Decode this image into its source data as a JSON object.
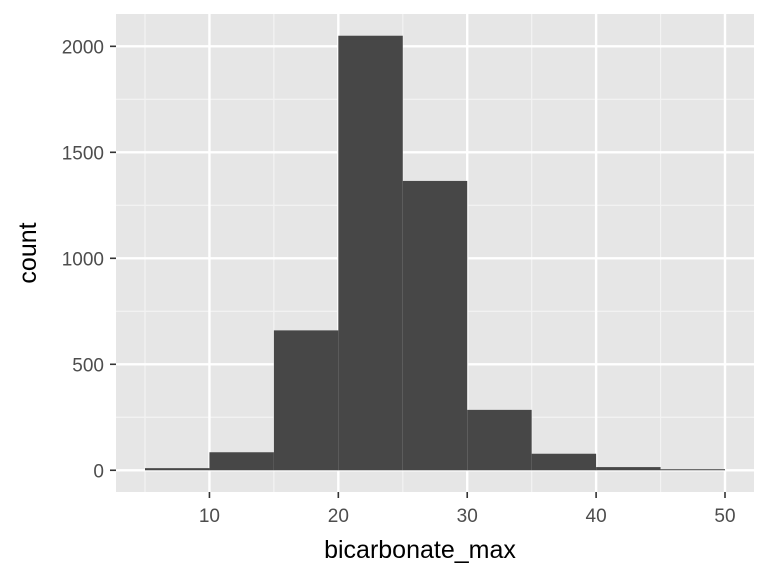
{
  "chart_data": {
    "type": "bar",
    "subtype": "histogram",
    "xlabel": "bicarbonate_max",
    "ylabel": "count",
    "bin_width": 5,
    "bins": [
      {
        "x0": 5,
        "x1": 10,
        "count": 10
      },
      {
        "x0": 10,
        "x1": 15,
        "count": 85
      },
      {
        "x0": 15,
        "x1": 20,
        "count": 660
      },
      {
        "x0": 20,
        "x1": 25,
        "count": 2050
      },
      {
        "x0": 25,
        "x1": 30,
        "count": 1365
      },
      {
        "x0": 30,
        "x1": 35,
        "count": 285
      },
      {
        "x0": 35,
        "x1": 40,
        "count": 78
      },
      {
        "x0": 40,
        "x1": 45,
        "count": 15
      },
      {
        "x0": 45,
        "x1": 50,
        "count": 5
      }
    ],
    "xlim": [
      2.75,
      52.25
    ],
    "ylim": [
      -102.5,
      2152.5
    ],
    "x_ticks": [
      10,
      20,
      30,
      40,
      50
    ],
    "x_minor_ticks": [
      5,
      15,
      25,
      35,
      45
    ],
    "y_ticks": [
      0,
      500,
      1000,
      1500,
      2000
    ],
    "y_minor_ticks": [
      250,
      750,
      1250,
      1750
    ],
    "x_tick_labels": [
      "10",
      "20",
      "30",
      "40",
      "50"
    ],
    "y_tick_labels": [
      "0",
      "500",
      "1000",
      "1500",
      "2000"
    ],
    "grid": true,
    "legend": "none",
    "colors": {
      "panel_background": "#e6e6e6",
      "grid_major": "#ffffff",
      "grid_minor": "#f3f3f3",
      "bar_fill": "#474747",
      "tick_mark": "#333333"
    }
  }
}
